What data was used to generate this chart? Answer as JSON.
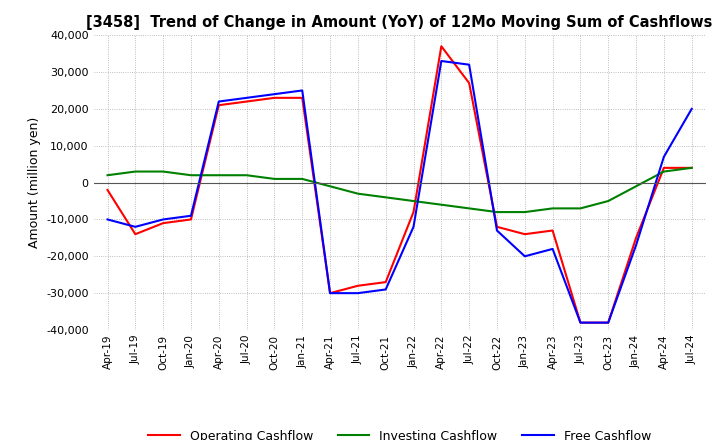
{
  "title": "[3458]  Trend of Change in Amount (YoY) of 12Mo Moving Sum of Cashflows",
  "ylabel": "Amount (million yen)",
  "ylim": [
    -40000,
    40000
  ],
  "yticks": [
    -40000,
    -30000,
    -20000,
    -10000,
    0,
    10000,
    20000,
    30000,
    40000
  ],
  "x_labels": [
    "Apr-19",
    "Jul-19",
    "Oct-19",
    "Jan-20",
    "Apr-20",
    "Jul-20",
    "Oct-20",
    "Jan-21",
    "Apr-21",
    "Jul-21",
    "Oct-21",
    "Jan-22",
    "Apr-22",
    "Jul-22",
    "Oct-22",
    "Jan-23",
    "Apr-23",
    "Jul-23",
    "Oct-23",
    "Jan-24",
    "Apr-24",
    "Jul-24"
  ],
  "operating": [
    -2000,
    -14000,
    -11000,
    -10000,
    21000,
    22000,
    23000,
    23000,
    -30000,
    -28000,
    -27000,
    -8000,
    37000,
    27000,
    -12000,
    -14000,
    -13000,
    -38000,
    -38000,
    -15000,
    4000,
    4000
  ],
  "investing": [
    2000,
    3000,
    3000,
    2000,
    2000,
    2000,
    1000,
    1000,
    -1000,
    -3000,
    -4000,
    -5000,
    -6000,
    -7000,
    -8000,
    -8000,
    -7000,
    -7000,
    -5000,
    -1000,
    3000,
    4000
  ],
  "free": [
    -10000,
    -12000,
    -10000,
    -9000,
    22000,
    23000,
    24000,
    25000,
    -30000,
    -30000,
    -29000,
    -12000,
    33000,
    32000,
    -13000,
    -20000,
    -18000,
    -38000,
    -38000,
    -17000,
    7000,
    20000
  ],
  "operating_color": "#ff0000",
  "investing_color": "#008000",
  "free_color": "#0000ff",
  "grid_color": "#aaaaaa",
  "background_color": "#ffffff"
}
